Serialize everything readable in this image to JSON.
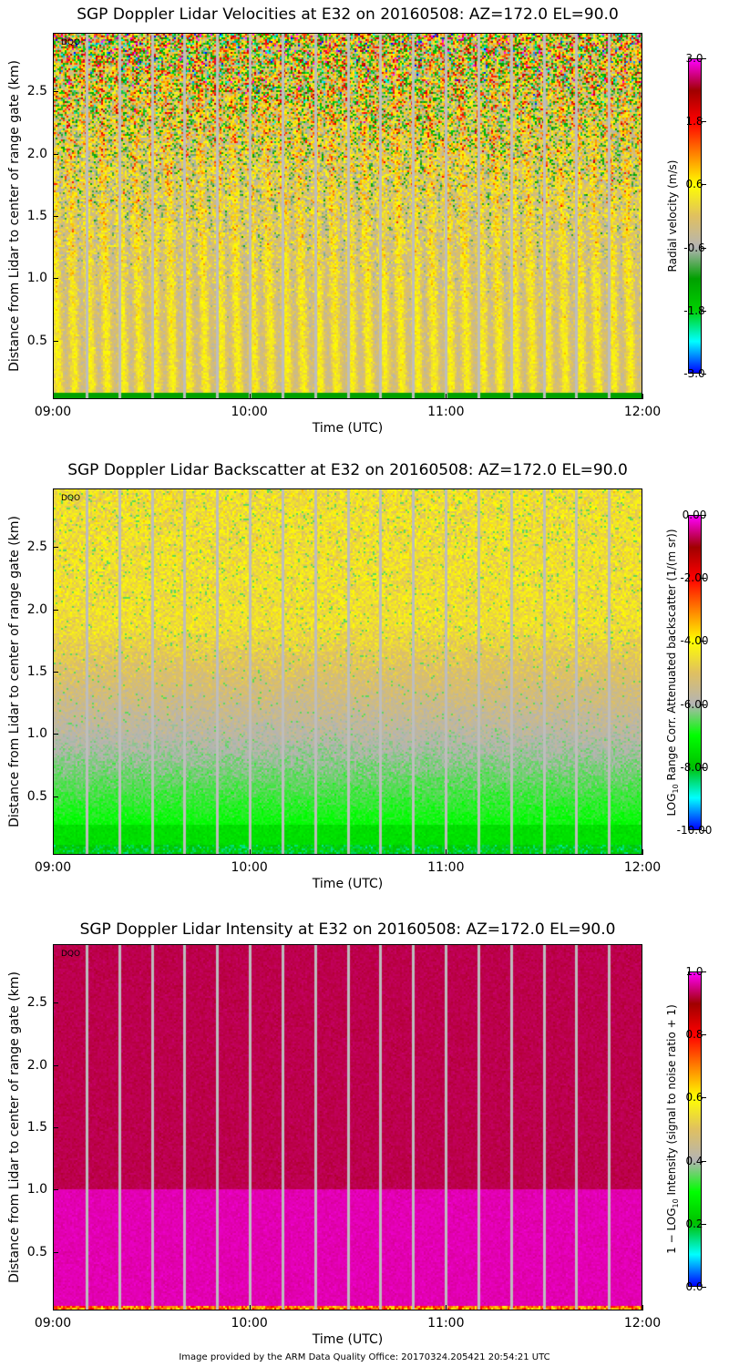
{
  "footer": "Image provided by the ARM Data Quality Office: 20170324.205421 20:54:21 UTC",
  "chart_data": [
    {
      "type": "heatmap",
      "title": "SGP Doppler Lidar Velocities at E32 on 20160508: AZ=172.0 EL=90.0",
      "xlabel": "Time (UTC)",
      "ylabel": "Distance from Lidar to center of range gate (km)",
      "xticks": [
        "09:00",
        "10:00",
        "11:00",
        "12:00"
      ],
      "yticks": [
        "0.5",
        "1.0",
        "1.5",
        "2.0",
        "2.5"
      ],
      "ylim": [
        0.03,
        2.97
      ],
      "xlim": [
        "09:00",
        "12:00"
      ],
      "annotation": "DQO",
      "colorbar": {
        "label": "Radial velocity (m/s)",
        "ticks": [
          "3.0",
          "1.8",
          "0.6",
          "-0.6",
          "-1.8",
          "-3.0"
        ],
        "range": [
          -3.0,
          3.0
        ],
        "colors": [
          "#0000ff",
          "#00ffff",
          "#00d000",
          "#00a000",
          "#b4b4b4",
          "#e0c060",
          "#ffff00",
          "#ff8000",
          "#ff0000",
          "#a00000",
          "#ff00ff"
        ]
      },
      "description_pattern": "velocity"
    },
    {
      "type": "heatmap",
      "title": "SGP Doppler Lidar Backscatter at E32 on 20160508: AZ=172.0 EL=90.0",
      "xlabel": "Time (UTC)",
      "ylabel": "Distance from Lidar to center of range gate (km)",
      "xticks": [
        "09:00",
        "10:00",
        "11:00",
        "12:00"
      ],
      "yticks": [
        "0.5",
        "1.0",
        "1.5",
        "2.0",
        "2.5"
      ],
      "ylim": [
        0.03,
        2.97
      ],
      "xlim": [
        "09:00",
        "12:00"
      ],
      "annotation": "DQO",
      "colorbar": {
        "label_prefix": "LOG",
        "label_sub": "10",
        "label_suffix": " Range Corr. Attenuated backscatter (1/(m sr))",
        "ticks": [
          "0.00",
          "-2.00",
          "-4.00",
          "-6.00",
          "-8.00",
          "-10.00"
        ],
        "range": [
          -10.0,
          0.0
        ],
        "colors": [
          "#0000ff",
          "#00ffff",
          "#00c000",
          "#00ff00",
          "#b4b4b4",
          "#e0c060",
          "#ffff00",
          "#ff8000",
          "#ff0000",
          "#a00000",
          "#ff00ff"
        ]
      },
      "description_pattern": "backscatter"
    },
    {
      "type": "heatmap",
      "title": "SGP Doppler Lidar Intensity at E32 on 20160508: AZ=172.0 EL=90.0",
      "xlabel": "Time (UTC)",
      "ylabel": "Distance from Lidar to center of range gate (km)",
      "xticks": [
        "09:00",
        "10:00",
        "11:00",
        "12:00"
      ],
      "yticks": [
        "0.5",
        "1.0",
        "1.5",
        "2.0",
        "2.5"
      ],
      "ylim": [
        0.03,
        2.97
      ],
      "xlim": [
        "09:00",
        "12:00"
      ],
      "annotation": "DQO",
      "colorbar": {
        "label_prefix": "1 − LOG",
        "label_sub": "10",
        "label_suffix": " Intensity (signal to noise ratio + 1)",
        "ticks": [
          "1.0",
          "0.8",
          "0.6",
          "0.4",
          "0.2",
          "0.0"
        ],
        "range": [
          0.0,
          1.0
        ],
        "colors": [
          "#0000ff",
          "#00ffff",
          "#00c000",
          "#00ff00",
          "#b4b4b4",
          "#e0c060",
          "#ffff00",
          "#ff8000",
          "#ff0000",
          "#a00000",
          "#ff00ff"
        ]
      },
      "description_pattern": "intensity"
    }
  ]
}
